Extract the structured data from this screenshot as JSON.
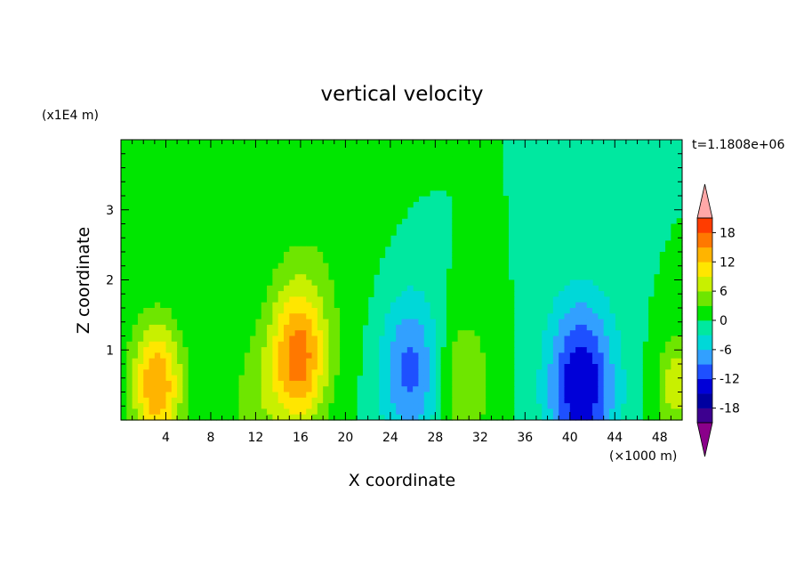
{
  "chart_data": {
    "type": "heatmap",
    "title": "vertical velocity",
    "xlabel": "X coordinate",
    "ylabel": "Z coordinate",
    "x_unit_label": "(×1000 m)",
    "y_unit_label": "(x1E4 m)",
    "time_label": "t=1.1808e+06",
    "xlim": [
      0,
      50
    ],
    "ylim": [
      0,
      4
    ],
    "x_ticks": [
      4,
      8,
      12,
      16,
      20,
      24,
      28,
      32,
      36,
      40,
      44,
      48
    ],
    "y_ticks": [
      1,
      2,
      3
    ],
    "colorbar": {
      "levels": [
        -21,
        -18,
        -15,
        -12,
        -9,
        -6,
        -3,
        0,
        3,
        6,
        9,
        12,
        15,
        18,
        21
      ],
      "tick_values": [
        18,
        12,
        6,
        0,
        -6,
        -12,
        -18
      ],
      "colors": [
        "#8a008a",
        "#3d008f",
        "#0000a0",
        "#0000d8",
        "#1e50ff",
        "#32a0ff",
        "#00d8d8",
        "#00e8a0",
        "#00e600",
        "#6ee600",
        "#c8f000",
        "#ffe600",
        "#ffb400",
        "#ff7800",
        "#ff3c00",
        "#ff0000",
        "#ffa8a8"
      ]
    },
    "features": [
      {
        "x": 3.2,
        "z": 0.5,
        "w": 0.9,
        "value": 15
      },
      {
        "x": 15.8,
        "z": 0.9,
        "w": 1.0,
        "value": 16
      },
      {
        "x": 25.8,
        "z": 0.7,
        "w": 1.1,
        "value": -10
      },
      {
        "x": 41.0,
        "z": 0.5,
        "w": 1.2,
        "value": -15
      },
      {
        "x": 49.5,
        "z": 0.5,
        "w": 0.7,
        "value": 8
      },
      {
        "x": 30.5,
        "z": 0.55,
        "w": 1.0,
        "value": 6
      },
      {
        "x": 12.0,
        "z": 0.2,
        "w": 1.0,
        "value": 4
      },
      {
        "x": 17.5,
        "z": 2.4,
        "w": 2.0,
        "value": 2
      }
    ]
  }
}
